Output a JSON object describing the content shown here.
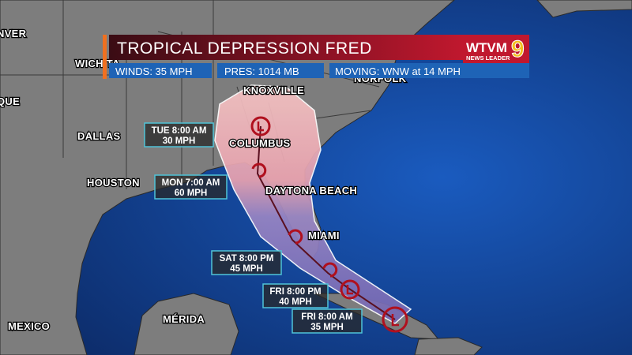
{
  "banner": {
    "title": "TROPICAL DEPRESSION FRED",
    "winds": "WINDS: 35 MPH",
    "pressure": "PRES: 1014 MB",
    "moving": "MOVING: WNW at 14 MPH"
  },
  "logo": {
    "name": "WTVM",
    "number": "9",
    "tagline": "NEWS LEADER"
  },
  "cities": [
    "NVER",
    "WICHITA",
    "QUE",
    "DALLAS",
    "HOUSTON",
    "NORFOLK",
    "KNOXVILLE",
    "COLUMBUS",
    "DAYTONA BEACH",
    "MIAMI",
    "MEXICO",
    "MÉRIDA"
  ],
  "forecast_points": [
    {
      "time": "TUE 8:00 AM",
      "wind": "30 MPH"
    },
    {
      "time": "MON 7:00 AM",
      "wind": "60 MPH"
    },
    {
      "time": "SAT 8:00 PM",
      "wind": "45 MPH"
    },
    {
      "time": "FRI 8:00 PM",
      "wind": "40 MPH"
    },
    {
      "time": "FRI 8:00 AM",
      "wind": "35 MPH"
    }
  ]
}
